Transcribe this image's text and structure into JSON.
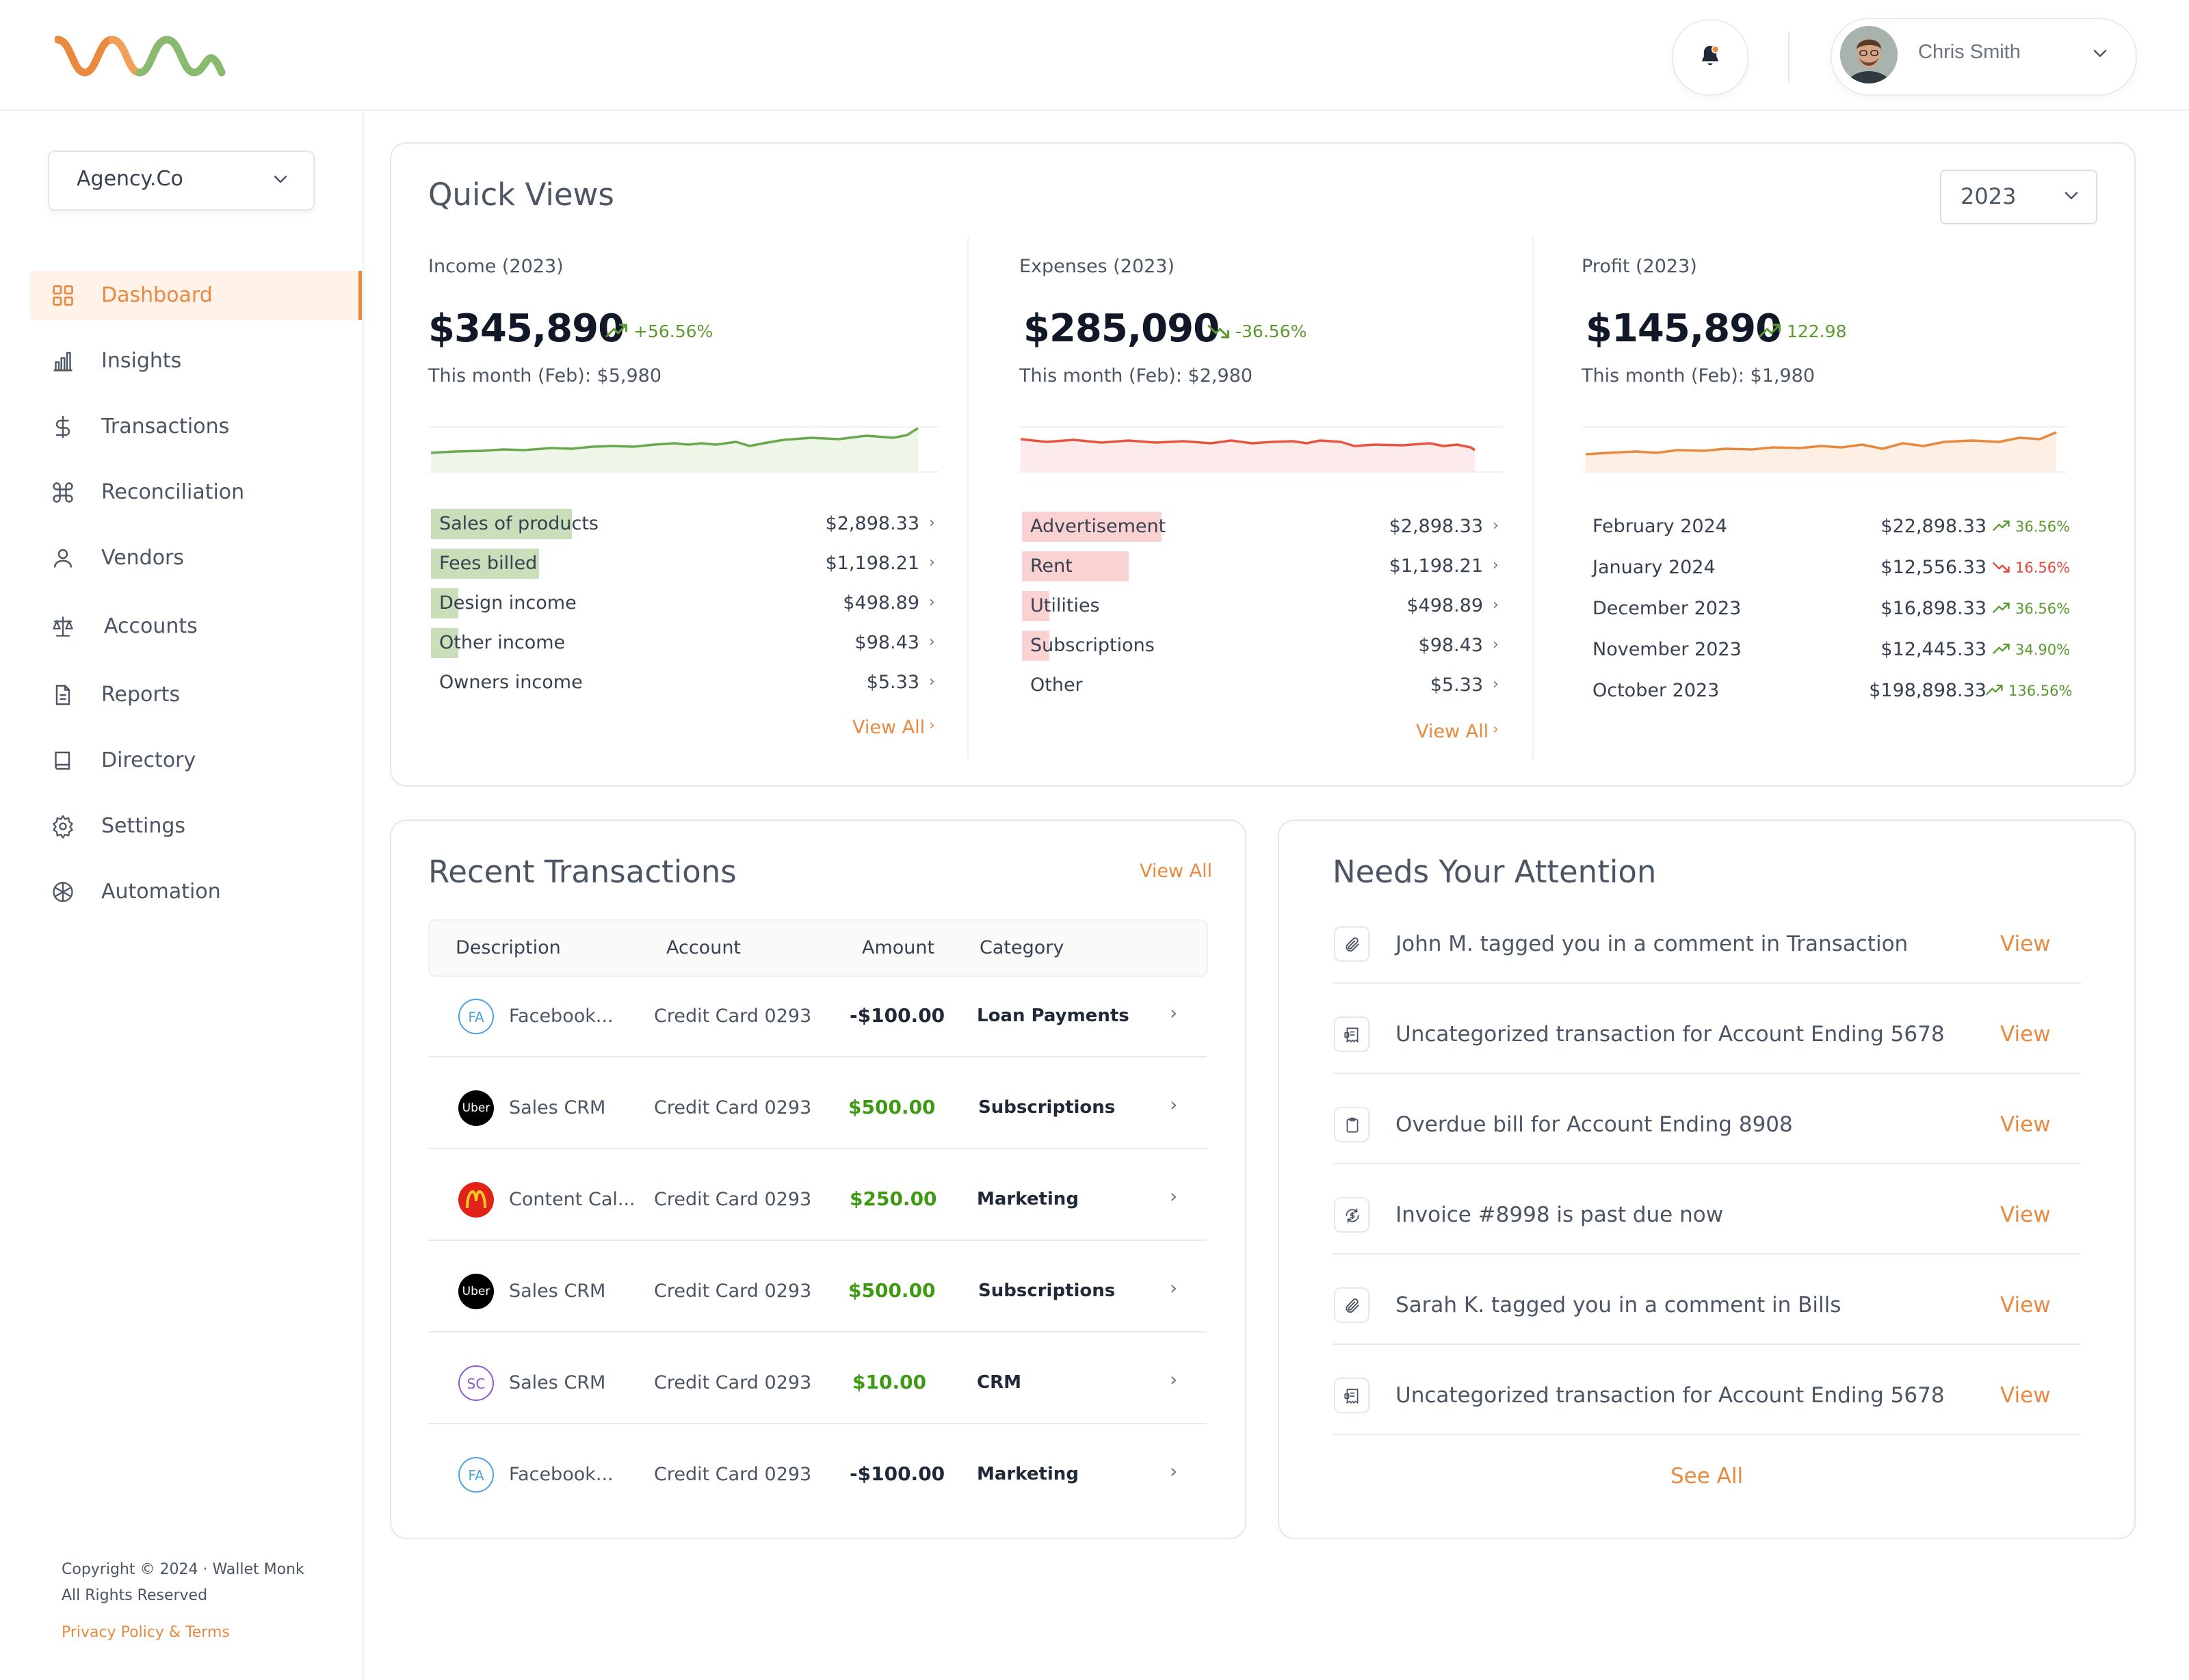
{
  "header": {
    "user_name": "Chris Smith"
  },
  "sidebar": {
    "org": "Agency.Co",
    "items": [
      {
        "label": "Dashboard",
        "icon": "grid-icon"
      },
      {
        "label": "Insights",
        "icon": "bar-chart-icon"
      },
      {
        "label": "Transactions",
        "icon": "dollar-icon"
      },
      {
        "label": "Reconciliation",
        "icon": "command-icon"
      },
      {
        "label": "Vendors",
        "icon": "user-icon"
      },
      {
        "label": "Accounts",
        "icon": "scale-icon"
      },
      {
        "label": "Reports",
        "icon": "file-icon"
      },
      {
        "label": "Directory",
        "icon": "book-icon"
      },
      {
        "label": "Settings",
        "icon": "gear-icon"
      },
      {
        "label": "Automation",
        "icon": "cube-icon"
      }
    ],
    "copyright_line1": "Copyright © 2024 · Wallet Monk",
    "copyright_line2": "All Rights Reserved",
    "privacy": "Privacy Policy & Terms"
  },
  "quick_views": {
    "title": "Quick Views",
    "year": "2023",
    "income": {
      "label": "Income (2023)",
      "amount": "$345,890",
      "change": "+56.56%",
      "month": "This month (Feb): $5,980",
      "rows": [
        {
          "label": "Sales of products",
          "value": "$2,898.33"
        },
        {
          "label": "Fees billed",
          "value": "$1,198.21"
        },
        {
          "label": "Design income",
          "value": "$498.89"
        },
        {
          "label": "Other income",
          "value": "$98.43"
        },
        {
          "label": "Owners income",
          "value": "$5.33"
        }
      ],
      "view_all": "View All"
    },
    "expenses": {
      "label": "Expenses (2023)",
      "amount": "$285,090",
      "change": "-36.56%",
      "month": "This month (Feb): $2,980",
      "rows": [
        {
          "label": "Advertisement",
          "value": "$2,898.33"
        },
        {
          "label": "Rent",
          "value": "$1,198.21"
        },
        {
          "label": "Utilities",
          "value": "$498.89"
        },
        {
          "label": "Subscriptions",
          "value": "$98.43"
        },
        {
          "label": "Other",
          "value": "$5.33"
        }
      ],
      "view_all": "View All"
    },
    "profit": {
      "label": "Profit (2023)",
      "amount": "$145,890",
      "change": "122.98",
      "month": "This month (Feb): $1,980",
      "rows": [
        {
          "label": "February 2024",
          "value": "$22,898.33",
          "change": "36.56%",
          "dir": "up"
        },
        {
          "label": "January 2024",
          "value": "$12,556.33",
          "change": "16.56%",
          "dir": "down"
        },
        {
          "label": "December 2023",
          "value": "$16,898.33",
          "change": "36.56%",
          "dir": "up"
        },
        {
          "label": "November 2023",
          "value": "$12,445.33",
          "change": "34.90%",
          "dir": "up"
        },
        {
          "label": "October 2023",
          "value": "$198,898.33",
          "change": "136.56%",
          "dir": "up"
        }
      ]
    }
  },
  "transactions": {
    "title": "Recent Transactions",
    "view_all": "View All",
    "columns": [
      "Description",
      "Account",
      "Amount",
      "Category"
    ],
    "rows": [
      {
        "logo": "FA",
        "desc": "Facebook...",
        "account": "Credit Card 0293",
        "amount": "-$100.00",
        "category": "Loan Payments"
      },
      {
        "logo": "Uber",
        "desc": "Sales CRM",
        "account": "Credit Card 0293",
        "amount": "$500.00",
        "category": "Subscriptions"
      },
      {
        "logo": "mcdonalds-logo",
        "desc": "Content Cal...",
        "account": "Credit Card 0293",
        "amount": "$250.00",
        "category": "Marketing"
      },
      {
        "logo": "Uber",
        "desc": "Sales CRM",
        "account": "Credit Card 0293",
        "amount": "$500.00",
        "category": "Subscriptions"
      },
      {
        "logo": "SC",
        "desc": "Sales CRM",
        "account": "Credit Card 0293",
        "amount": "$10.00",
        "category": "CRM"
      },
      {
        "logo": "FA",
        "desc": "Facebook...",
        "account": "Credit Card 0293",
        "amount": "-$100.00",
        "category": "Marketing"
      }
    ]
  },
  "attention": {
    "title": "Needs Your Attention",
    "items": [
      {
        "icon": "paperclip-icon",
        "text": "John M. tagged you in a comment in Transaction",
        "action": "View"
      },
      {
        "icon": "receipt-icon",
        "text": "Uncategorized transaction for Account Ending 5678",
        "action": "View"
      },
      {
        "icon": "clipboard-icon",
        "text": "Overdue bill for Account Ending 8908",
        "action": "View"
      },
      {
        "icon": "refresh-dollar-icon",
        "text": "Invoice #8998 is past due now",
        "action": "View"
      },
      {
        "icon": "paperclip-icon",
        "text": "Sarah K. tagged you in a comment in Bills",
        "action": "View"
      },
      {
        "icon": "receipt-icon",
        "text": "Uncategorized transaction for Account Ending 5678",
        "action": "View"
      }
    ],
    "see_all": "See All"
  },
  "colors": {
    "accent": "#e8893f",
    "positive": "#5a9a2f",
    "negative": "#e5483a",
    "income_line": "#6aa84f",
    "expense_line": "#e8553f",
    "profit_line": "#e8893f"
  }
}
